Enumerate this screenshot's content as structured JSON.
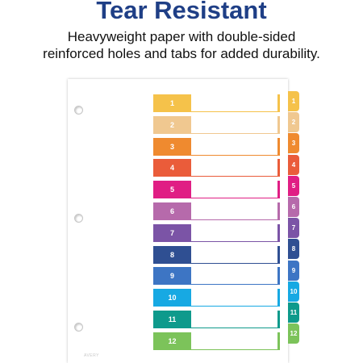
{
  "header": {
    "title": "Tear Resistant",
    "subtitle_line1": "Heavyweight paper with double-sided",
    "subtitle_line2": "reinforced holes and tabs for added durability."
  },
  "sheet": {
    "logo_text": "AVERY",
    "tabs": [
      {
        "label": "1",
        "color": "#f5c24a"
      },
      {
        "label": "2",
        "color": "#f0c890"
      },
      {
        "label": "3",
        "color": "#ef8a2f"
      },
      {
        "label": "4",
        "color": "#ea5c3a"
      },
      {
        "label": "5",
        "color": "#e01e84"
      },
      {
        "label": "6",
        "color": "#b66aab"
      },
      {
        "label": "7",
        "color": "#7b54a6"
      },
      {
        "label": "8",
        "color": "#2f4f92"
      },
      {
        "label": "9",
        "color": "#3d75c4"
      },
      {
        "label": "10",
        "color": "#17a9e3"
      },
      {
        "label": "11",
        "color": "#0e9a8c"
      },
      {
        "label": "12",
        "color": "#7cc35a"
      }
    ]
  }
}
